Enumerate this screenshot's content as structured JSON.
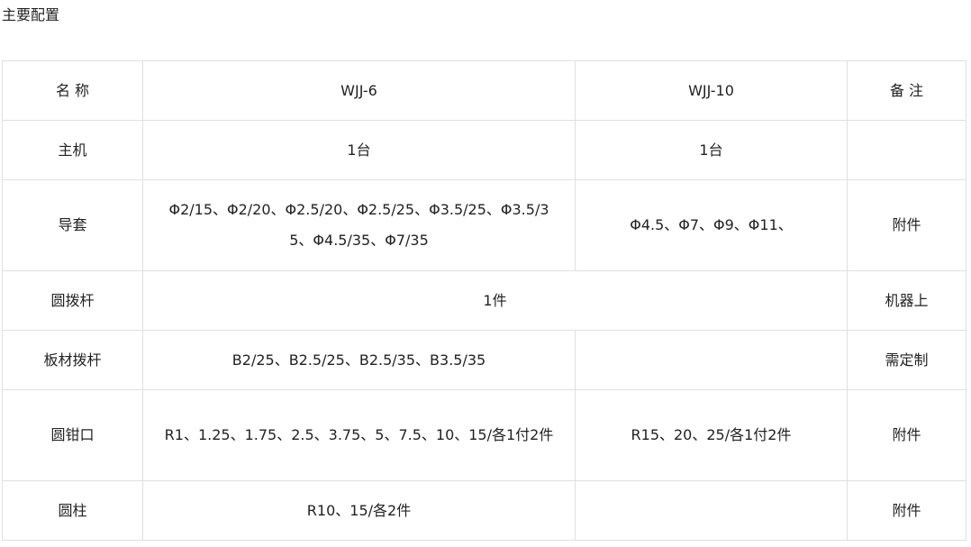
{
  "title": "主要配置",
  "headers": [
    "名 称",
    "WJJ-6",
    "WJJ-10",
    "备 注"
  ],
  "rows": [
    {
      "name": "主机",
      "wjj6": "1台",
      "wjj10": "1台",
      "note": ""
    },
    {
      "name": "导套",
      "wjj6": "Φ2/15、Φ2/20、Φ2.5/20、Φ2.5/25、Φ3.5/25、Φ3.5/35、Φ4.5/35、Φ7/35",
      "wjj10": "Φ4.5、Φ7、Φ9、Φ11、",
      "note": "附件"
    },
    {
      "name": "圆拨杆",
      "merged": "1件",
      "note": "机器上"
    },
    {
      "name": "板材拨杆",
      "wjj6": "B2/25、B2.5/25、B2.5/35、B3.5/35",
      "wjj10": "",
      "note": "需定制"
    },
    {
      "name": "圆钳口",
      "wjj6": "R1、1.25、1.75、2.5、3.75、5、7.5、10、15/各1付2件",
      "wjj10": "R15、20、25/各1付2件",
      "note": "附件"
    },
    {
      "name": "圆柱",
      "wjj6": "R10、15/各2件",
      "wjj10": "",
      "note": "附件"
    }
  ]
}
